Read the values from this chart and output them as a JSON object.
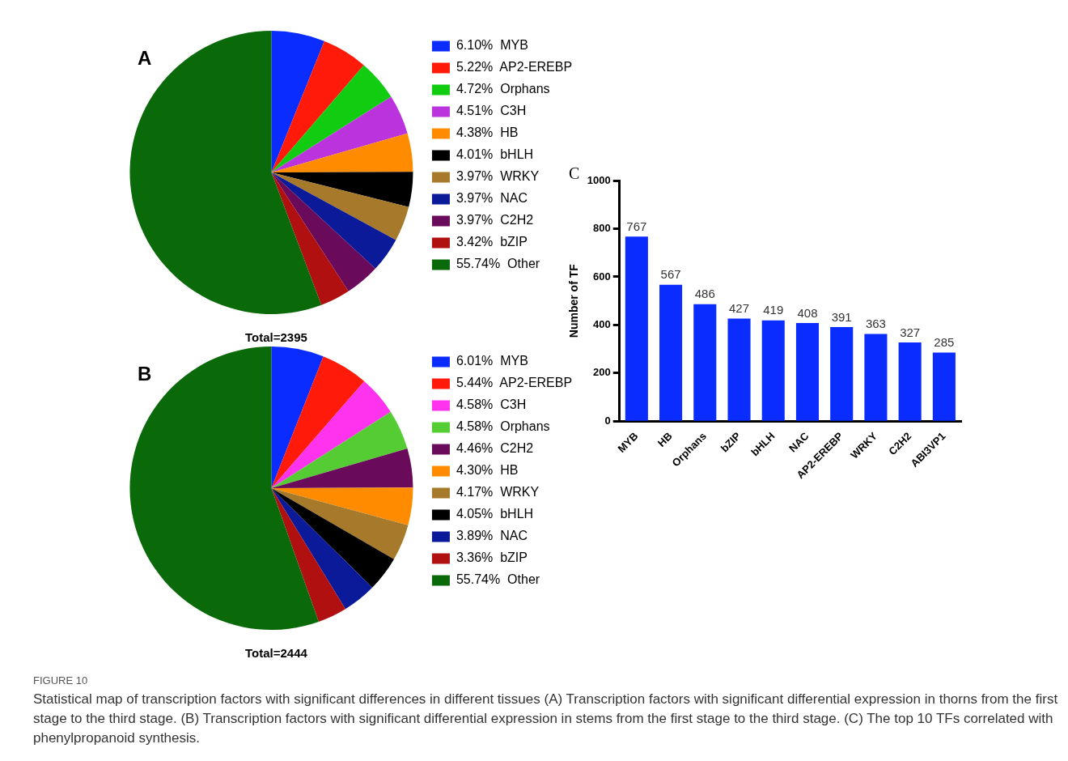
{
  "chart_data": [
    {
      "type": "pie",
      "title": "A",
      "categories": [
        "MYB",
        "AP2-EREBP",
        "Orphans",
        "C3H",
        "HB",
        "bHLH",
        "WRKY",
        "NAC",
        "C2H2",
        "bZIP",
        "Other"
      ],
      "values": [
        6.1,
        5.22,
        4.72,
        4.51,
        4.38,
        4.01,
        3.97,
        3.97,
        3.97,
        3.42,
        55.74
      ],
      "value_labels": [
        "6.10%",
        "5.22%",
        "4.72%",
        "4.51%",
        "4.38%",
        "4.01%",
        "3.97%",
        "3.97%",
        "3.97%",
        "3.42%",
        "55.74%"
      ],
      "colors": [
        "#0a2cff",
        "#ff1a0a",
        "#11cc11",
        "#bb33dd",
        "#ff8c00",
        "#000000",
        "#a67a2a",
        "#0a1a99",
        "#6a0a5a",
        "#b01010",
        "#0a6a0a"
      ],
      "legend": "right",
      "annotations": [
        "Total=2395"
      ]
    },
    {
      "type": "pie",
      "title": "B",
      "categories": [
        "MYB",
        "AP2-EREBP",
        "C3H",
        "Orphans",
        "C2H2",
        "HB",
        "WRKY",
        "bHLH",
        "NAC",
        "bZIP",
        "Other"
      ],
      "values": [
        6.01,
        5.44,
        4.58,
        4.58,
        4.46,
        4.3,
        4.17,
        4.05,
        3.89,
        3.36,
        55.74
      ],
      "value_labels": [
        "6.01%",
        "5.44%",
        "4.58%",
        "4.58%",
        "4.46%",
        "4.30%",
        "4.17%",
        "4.05%",
        "3.89%",
        "3.36%",
        "55.74%"
      ],
      "colors": [
        "#0a2cff",
        "#ff1a0a",
        "#ff33ee",
        "#55cc33",
        "#6a0a5a",
        "#ff8c00",
        "#a67a2a",
        "#000000",
        "#0a1a99",
        "#b01010",
        "#0a6a0a"
      ],
      "legend": "right",
      "annotations": [
        "Total=2444"
      ]
    },
    {
      "type": "bar",
      "title": "C",
      "categories": [
        "MYB",
        "HB",
        "Orphans",
        "bZIP",
        "bHLH",
        "NAC",
        "AP2-EREBP",
        "WRKY",
        "C2H2",
        "ABI3VP1"
      ],
      "values": [
        767,
        567,
        486,
        427,
        419,
        408,
        391,
        363,
        327,
        285
      ],
      "color": "#0a2cff",
      "ylabel": "Number of TF",
      "ylim": [
        0,
        1000
      ],
      "yticks": [
        0,
        200,
        400,
        600,
        800,
        1000
      ],
      "data_labels": true,
      "grid": false,
      "annotations": [
        "FIGURE 10",
        "Statistical map of transcription factors with significant differences in different tissues (A) Transcription factors with significant differential expression in thorns from the first stage to the third stage. (B) Transcription factors with significant differential expression in stems from the first stage to the third stage. (C) The top 10 TFs correlated with phenylpropanoid synthesis."
      ]
    }
  ]
}
